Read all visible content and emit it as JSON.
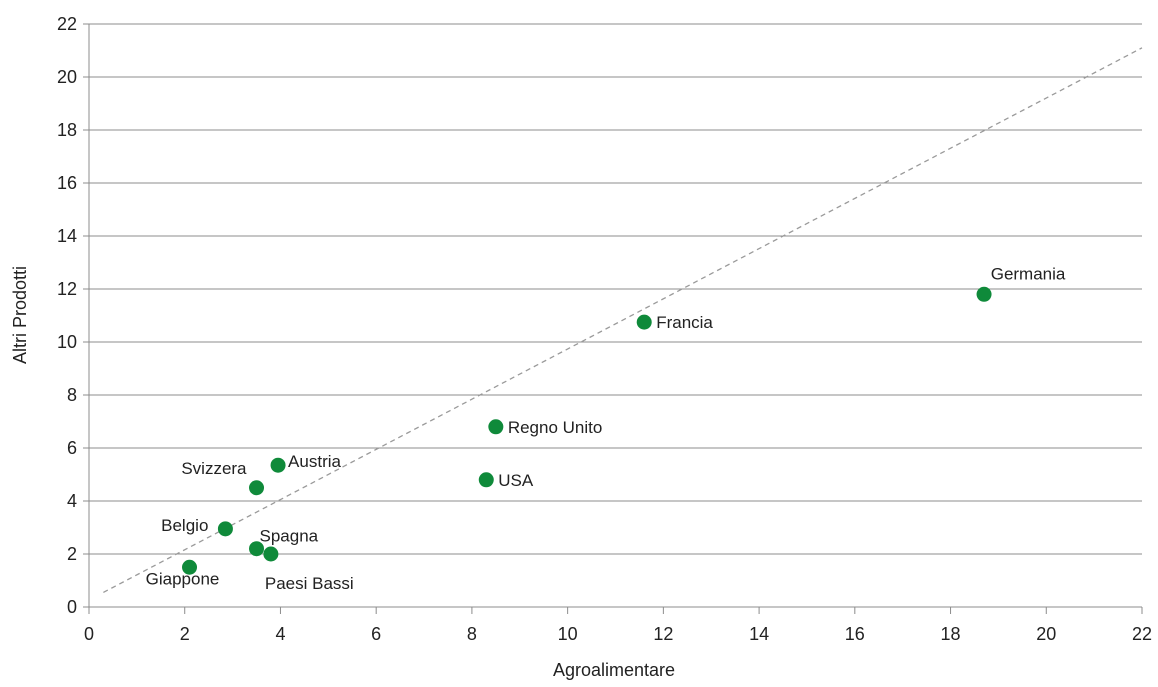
{
  "chart_data": {
    "type": "scatter",
    "title": "",
    "xlabel": "Agroalimentare",
    "ylabel": "Altri Prodotti",
    "xlim": [
      0,
      22
    ],
    "ylim": [
      0,
      22
    ],
    "x_ticks": [
      0,
      2,
      4,
      6,
      8,
      10,
      12,
      14,
      16,
      18,
      20,
      22
    ],
    "y_ticks": [
      0,
      2,
      4,
      6,
      8,
      10,
      12,
      14,
      16,
      18,
      20,
      22
    ],
    "grid": "horizontal",
    "point_color": "#0f8a3a",
    "trendline": {
      "style": "dashed",
      "color": "#9a9a9a",
      "x1": 0.3,
      "y1": 0.55,
      "x2": 22,
      "y2": 21.1
    },
    "points": [
      {
        "label": "Germania",
        "x": 18.7,
        "y": 11.8,
        "label_pos": "above"
      },
      {
        "label": "Francia",
        "x": 11.6,
        "y": 10.75,
        "label_pos": "right"
      },
      {
        "label": "Regno Unito",
        "x": 8.5,
        "y": 6.8,
        "label_pos": "right"
      },
      {
        "label": "USA",
        "x": 8.3,
        "y": 4.8,
        "label_pos": "right"
      },
      {
        "label": "Austria",
        "x": 3.95,
        "y": 5.35,
        "label_pos": "right"
      },
      {
        "label": "Svizzera",
        "x": 3.5,
        "y": 4.5,
        "label_pos": "upper-left"
      },
      {
        "label": "Belgio",
        "x": 2.85,
        "y": 2.95,
        "label_pos": "left"
      },
      {
        "label": "Spagna",
        "x": 3.5,
        "y": 2.2,
        "label_pos": "upper-right"
      },
      {
        "label": "Paesi Bassi",
        "x": 3.8,
        "y": 2.0,
        "label_pos": "below"
      },
      {
        "label": "Giappone",
        "x": 2.1,
        "y": 1.5,
        "label_pos": "below"
      }
    ]
  }
}
